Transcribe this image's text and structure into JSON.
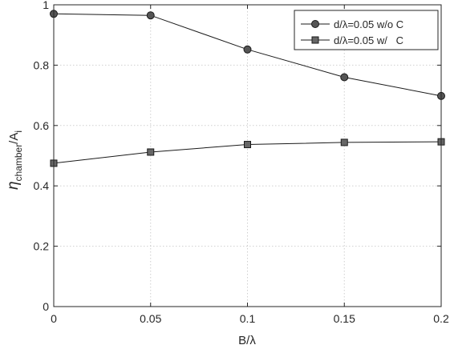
{
  "chart_data": {
    "type": "line",
    "title": "",
    "xlabel": "B/λ",
    "ylabel": {
      "main": "η",
      "sub1": "chamber",
      "mid": "/A",
      "sub2": "i"
    },
    "xlim": [
      0,
      0.2
    ],
    "ylim": [
      0,
      1
    ],
    "xticks": [
      0,
      0.05,
      0.1,
      0.15,
      0.2
    ],
    "xtick_labels": [
      "0",
      "0.05",
      "0.1",
      "0.15",
      "0.2"
    ],
    "yticks": [
      0,
      0.2,
      0.4,
      0.6,
      0.8,
      1
    ],
    "ytick_labels": [
      "0",
      "0.2",
      "0.4",
      "0.6",
      "0.8",
      "1"
    ],
    "grid": true,
    "legend_position": "top-right",
    "x": [
      0,
      0.05,
      0.1,
      0.15,
      0.2
    ],
    "series": [
      {
        "name": "d/λ=0.05 w/o C",
        "marker": "circle",
        "color": "#555555",
        "values": [
          0.97,
          0.965,
          0.852,
          0.76,
          0.698
        ]
      },
      {
        "name": "d/λ=0.05 w/   C",
        "marker": "square",
        "color": "#666666",
        "values": [
          0.475,
          0.512,
          0.537,
          0.544,
          0.546
        ]
      }
    ]
  }
}
